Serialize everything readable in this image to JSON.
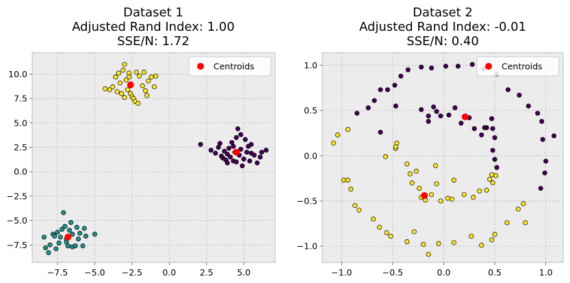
{
  "chart_data": [
    {
      "type": "scatter",
      "title": [
        "Dataset 1",
        "Adjusted Rand Index: 1.00",
        "SSE/N: 1.72"
      ],
      "xlim": [
        -9.2,
        7.1
      ],
      "ylim": [
        -9.3,
        12.2
      ],
      "xticks": [
        -7.5,
        -5.0,
        -2.5,
        0.0,
        2.5,
        5.0
      ],
      "xtick_labels": [
        "−7.5",
        "−5.0",
        "−2.5",
        "0.0",
        "2.5",
        "5.0"
      ],
      "yticks": [
        -7.5,
        -5.0,
        -2.5,
        0.0,
        2.5,
        5.0,
        7.5,
        10.0
      ],
      "ytick_labels": [
        "−7.5",
        "−5.0",
        "−2.5",
        "0.0",
        "2.5",
        "5.0",
        "7.5",
        "10.0"
      ],
      "grid": true,
      "legend": {
        "label": "Centroids",
        "placement": "top-right"
      },
      "series": [
        {
          "cluster": 0,
          "color": "#440154",
          "points": [
            [
              2.1,
              2.8
            ],
            [
              2.8,
              2.2
            ],
            [
              3.1,
              1.9
            ],
            [
              3.3,
              2.5
            ],
            [
              3.5,
              1.6
            ],
            [
              3.6,
              1.4
            ],
            [
              3.7,
              2.1
            ],
            [
              3.8,
              1.2
            ],
            [
              3.9,
              1.8
            ],
            [
              4.0,
              2.4
            ],
            [
              4.1,
              1.5
            ],
            [
              4.2,
              3.0
            ],
            [
              4.3,
              1.1
            ],
            [
              4.4,
              2.0
            ],
            [
              4.5,
              3.5
            ],
            [
              4.6,
              4.4
            ],
            [
              4.7,
              1.7
            ],
            [
              4.8,
              2.3
            ],
            [
              4.9,
              0.6
            ],
            [
              5.0,
              1.3
            ],
            [
              5.1,
              3.3
            ],
            [
              5.2,
              2.0
            ],
            [
              5.3,
              2.6
            ],
            [
              5.4,
              1.1
            ],
            [
              5.5,
              2.8
            ],
            [
              5.7,
              1.7
            ],
            [
              5.9,
              0.9
            ],
            [
              6.1,
              1.5
            ],
            [
              6.2,
              2.0
            ],
            [
              6.5,
              2.2
            ],
            [
              3.9,
              0.9
            ],
            [
              4.5,
              1.0
            ],
            [
              4.3,
              2.6
            ],
            [
              5.5,
              1.9
            ],
            [
              3.4,
              2.9
            ],
            [
              4.8,
              3.8
            ]
          ]
        },
        {
          "cluster": 1,
          "color": "#21918c",
          "points": [
            [
              -8.4,
              -6.7
            ],
            [
              -8.3,
              -7.8
            ],
            [
              -8.1,
              -8.3
            ],
            [
              -8.0,
              -7.5
            ],
            [
              -7.8,
              -6.4
            ],
            [
              -7.7,
              -6.6
            ],
            [
              -7.6,
              -7.9
            ],
            [
              -7.5,
              -6.2
            ],
            [
              -7.4,
              -7.3
            ],
            [
              -7.3,
              -6.7
            ],
            [
              -7.2,
              -5.9
            ],
            [
              -7.1,
              -4.2
            ],
            [
              -7.0,
              -5.6
            ],
            [
              -6.9,
              -6.9
            ],
            [
              -6.8,
              -7.6
            ],
            [
              -6.7,
              -6.0
            ],
            [
              -6.6,
              -5.2
            ],
            [
              -6.5,
              -7.7
            ],
            [
              -6.5,
              -6.4
            ],
            [
              -6.3,
              -7.6
            ],
            [
              -6.2,
              -5.7
            ],
            [
              -6.1,
              -6.9
            ],
            [
              -6.0,
              -6.3
            ],
            [
              -5.8,
              -7.6
            ],
            [
              -5.7,
              -5.8
            ],
            [
              -5.6,
              -6.6
            ],
            [
              -5.0,
              -6.4
            ],
            [
              -6.9,
              -7.2
            ]
          ]
        },
        {
          "cluster": 2,
          "color": "#fde725",
          "points": [
            [
              -4.3,
              8.5
            ],
            [
              -4.0,
              8.4
            ],
            [
              -3.8,
              8.7
            ],
            [
              -3.6,
              9.7
            ],
            [
              -3.5,
              8.2
            ],
            [
              -3.4,
              10.1
            ],
            [
              -3.3,
              9.1
            ],
            [
              -3.2,
              8.0
            ],
            [
              -3.1,
              10.4
            ],
            [
              -3.0,
              7.6
            ],
            [
              -2.9,
              9.4
            ],
            [
              -2.8,
              8.4
            ],
            [
              -2.7,
              10.1
            ],
            [
              -2.6,
              8.0
            ],
            [
              -2.5,
              7.7
            ],
            [
              -2.4,
              7.5
            ],
            [
              -2.3,
              7.2
            ],
            [
              -2.2,
              10.2
            ],
            [
              -2.1,
              7.0
            ],
            [
              -2.0,
              9.8
            ],
            [
              -1.8,
              8.8
            ],
            [
              -1.7,
              10.2
            ],
            [
              -1.6,
              8.3
            ],
            [
              -1.5,
              7.8
            ],
            [
              -1.4,
              9.3
            ],
            [
              -1.2,
              9.7
            ],
            [
              -1.0,
              8.7
            ],
            [
              -0.9,
              9.8
            ],
            [
              -3.0,
              11.0
            ],
            [
              -2.7,
              9.7
            ]
          ]
        }
      ],
      "centroids": [
        [
          4.5,
          2.0
        ],
        [
          -6.8,
          -6.7
        ],
        [
          -2.6,
          8.9
        ]
      ]
    },
    {
      "type": "scatter",
      "title": [
        "Dataset 2",
        "Adjusted Rand Index: -0.01",
        "SSE/N: 0.40"
      ],
      "xlim": [
        -1.19,
        1.17
      ],
      "ylim": [
        -1.18,
        1.14
      ],
      "xticks": [
        -1.0,
        -0.5,
        0.0,
        0.5,
        1.0
      ],
      "xtick_labels": [
        "−1.0",
        "−0.5",
        "0.0",
        "0.5",
        "1.0"
      ],
      "yticks": [
        -1.0,
        -0.5,
        0.0,
        0.5,
        1.0
      ],
      "ytick_labels": [
        "−1.0",
        "−0.5",
        "0.0",
        "0.5",
        "1.0"
      ],
      "grid": true,
      "legend": {
        "label": "Centroids",
        "placement": "top-right"
      },
      "series": [
        {
          "cluster": 0,
          "color": "#440154",
          "points": [
            [
              -0.85,
              0.47
            ],
            [
              -0.74,
              0.53
            ],
            [
              -0.68,
              0.61
            ],
            [
              -0.62,
              0.73
            ],
            [
              -0.55,
              0.73
            ],
            [
              -0.48,
              0.78
            ],
            [
              -0.42,
              0.88
            ],
            [
              -0.35,
              0.95
            ],
            [
              -0.22,
              0.98
            ],
            [
              -0.12,
              0.97
            ],
            [
              0.02,
              0.99
            ],
            [
              0.14,
              0.99
            ],
            [
              0.28,
              1.01
            ],
            [
              0.39,
              0.96
            ],
            [
              0.52,
              0.9
            ],
            [
              0.63,
              0.73
            ],
            [
              0.74,
              0.67
            ],
            [
              0.83,
              0.55
            ],
            [
              0.92,
              0.47
            ],
            [
              0.96,
              0.38
            ],
            [
              1.08,
              0.22
            ],
            [
              0.97,
              0.18
            ],
            [
              1.0,
              -0.06
            ],
            [
              0.99,
              -0.19
            ],
            [
              0.95,
              -0.36
            ],
            [
              -0.47,
              0.55
            ],
            [
              -0.22,
              0.51
            ],
            [
              -0.15,
              0.44
            ],
            [
              -0.1,
              0.54
            ],
            [
              -0.07,
              0.49
            ],
            [
              -0.03,
              0.44
            ],
            [
              0.05,
              0.45
            ],
            [
              0.11,
              0.53
            ],
            [
              0.17,
              0.36
            ],
            [
              0.25,
              0.42
            ],
            [
              0.3,
              0.3
            ],
            [
              0.37,
              0.23
            ],
            [
              0.42,
              0.31
            ],
            [
              0.47,
              0.41
            ],
            [
              0.48,
              0.3
            ],
            [
              0.5,
              0.2
            ],
            [
              0.48,
              0.06
            ],
            [
              0.5,
              -0.04
            ],
            [
              0.52,
              -0.13
            ],
            [
              -0.15,
              0.38
            ],
            [
              -0.62,
              0.26
            ],
            [
              0.4,
              0.31
            ]
          ]
        },
        {
          "cluster": 1,
          "color": "#fde725",
          "points": [
            [
              -1.08,
              0.14
            ],
            [
              -1.04,
              0.23
            ],
            [
              -0.98,
              -0.27
            ],
            [
              -0.94,
              -0.27
            ],
            [
              -0.94,
              0.29
            ],
            [
              -0.91,
              -0.37
            ],
            [
              -0.87,
              -0.55
            ],
            [
              -0.83,
              -0.6
            ],
            [
              -0.69,
              -0.7
            ],
            [
              -0.63,
              -0.79
            ],
            [
              -0.56,
              -0.85
            ],
            [
              -0.52,
              -0.89
            ],
            [
              -0.47,
              0.08
            ],
            [
              -0.46,
              0.14
            ],
            [
              -0.36,
              -0.95
            ],
            [
              -0.29,
              -0.84
            ],
            [
              -0.2,
              -0.98
            ],
            [
              -0.15,
              -1.09
            ],
            [
              -0.05,
              -0.97
            ],
            [
              0.1,
              -0.96
            ],
            [
              0.27,
              -0.89
            ],
            [
              0.37,
              -0.99
            ],
            [
              0.47,
              -0.93
            ],
            [
              0.5,
              -0.87
            ],
            [
              0.62,
              -0.74
            ],
            [
              0.73,
              -0.59
            ],
            [
              0.78,
              -0.53
            ],
            [
              0.8,
              -0.74
            ],
            [
              -0.47,
              0.1
            ],
            [
              -0.36,
              -0.09
            ],
            [
              -0.33,
              -0.2
            ],
            [
              -0.31,
              -0.3
            ],
            [
              -0.27,
              -0.17
            ],
            [
              -0.24,
              -0.36
            ],
            [
              -0.22,
              -0.46
            ],
            [
              -0.18,
              -0.49
            ],
            [
              -0.12,
              -0.43
            ],
            [
              -0.07,
              -0.31
            ],
            [
              -0.03,
              -0.5
            ],
            [
              0.04,
              -0.47
            ],
            [
              0.08,
              -0.48
            ],
            [
              0.1,
              -0.27
            ],
            [
              0.2,
              -0.43
            ],
            [
              0.29,
              -0.46
            ],
            [
              0.35,
              -0.39
            ],
            [
              0.42,
              -0.38
            ],
            [
              0.45,
              -0.26
            ],
            [
              0.47,
              -0.21
            ],
            [
              0.48,
              -0.3
            ],
            [
              0.51,
              -0.22
            ],
            [
              -0.57,
              -0.01
            ],
            [
              -0.08,
              -0.11
            ]
          ]
        }
      ],
      "centroids": [
        [
          0.21,
          0.43
        ],
        [
          -0.19,
          -0.44
        ]
      ]
    }
  ]
}
